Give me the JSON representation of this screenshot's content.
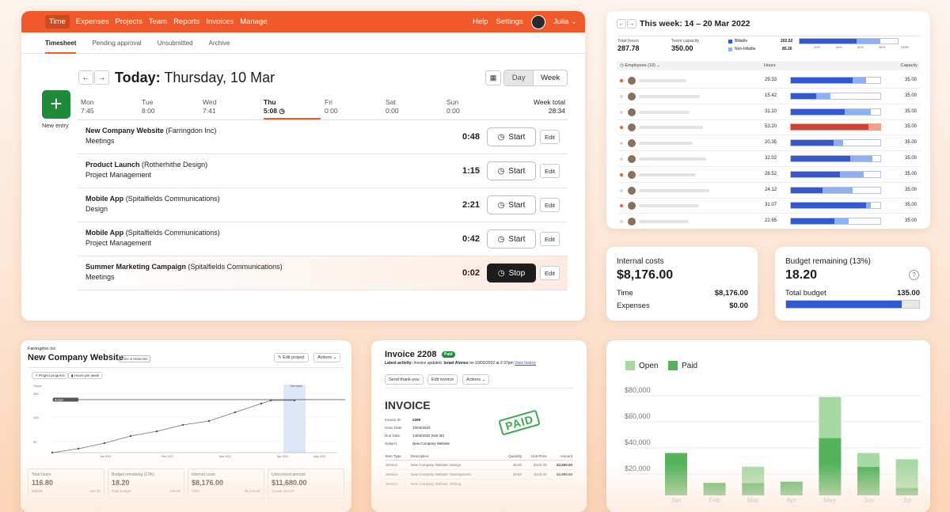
{
  "main": {
    "nav": [
      "Time",
      "Expenses",
      "Projects",
      "Team",
      "Reports",
      "Invoices",
      "Manage"
    ],
    "nav_right": [
      "Help",
      "Settings"
    ],
    "user": "Julia",
    "subtabs": [
      "Timesheet",
      "Pending approval",
      "Unsubmitted",
      "Archive"
    ],
    "today_bold": "Today:",
    "today_date": "Thursday, 10 Mar",
    "view_day": "Day",
    "view_week": "Week",
    "new_entry": "New entry",
    "days": [
      {
        "name": "Mon",
        "time": "7:45"
      },
      {
        "name": "Tue",
        "time": "8:00"
      },
      {
        "name": "Wed",
        "time": "7:41"
      },
      {
        "name": "Thu",
        "time": "5:08"
      },
      {
        "name": "Fri",
        "time": "0:00"
      },
      {
        "name": "Sat",
        "time": "0:00"
      },
      {
        "name": "Sun",
        "time": "0:00"
      }
    ],
    "week_total_label": "Week total",
    "week_total": "28:34",
    "entries": [
      {
        "project": "New Company Website",
        "client": "(Farringdon Inc)",
        "task": "Meetings",
        "duration": "0:48",
        "action": "Start"
      },
      {
        "project": "Product Launch",
        "client": "(Rotherhithe Design)",
        "task": "Project Management",
        "duration": "1:15",
        "action": "Start"
      },
      {
        "project": "Mobile App",
        "client": "(Spitalfields Communications)",
        "task": "Design",
        "duration": "2:21",
        "action": "Start"
      },
      {
        "project": "Mobile App",
        "client": "(Spitalfields Communications)",
        "task": "Project Management",
        "duration": "0:42",
        "action": "Start"
      },
      {
        "project": "Summer Marketing Campaign",
        "client": "(Spitalfields Communications)",
        "task": "Meetings",
        "duration": "0:02",
        "action": "Stop"
      }
    ],
    "edit_label": "Edit"
  },
  "week": {
    "title": "This week: 14 – 20 Mar 2022",
    "total_hours_label": "Total hours",
    "total_hours": "287.78",
    "capacity_label": "Team capacity",
    "capacity": "350.00",
    "billable_label": "Billable",
    "billable": "202.52",
    "nonbillable_label": "Non-billable",
    "nonbillable": "85.26",
    "scale": [
      "20%",
      "40%",
      "60%",
      "80%",
      "100%"
    ],
    "col_employees": "Employees (10)",
    "col_hours": "Hours",
    "col_capacity": "Capacity",
    "employees": [
      {
        "hours": "29.33",
        "capacity": "35.00",
        "billable": 0.69,
        "total": 0.84,
        "over": false,
        "status": "orange"
      },
      {
        "hours": "15.42",
        "capacity": "35.00",
        "billable": 0.28,
        "total": 0.44,
        "over": false,
        "status": "grey"
      },
      {
        "hours": "31.10",
        "capacity": "35.00",
        "billable": 0.6,
        "total": 0.89,
        "over": false,
        "status": "grey"
      },
      {
        "hours": "53.20",
        "capacity": "35.00",
        "billable": 0.87,
        "total": 1.0,
        "over": true,
        "status": "orange"
      },
      {
        "hours": "20.35",
        "capacity": "35.00",
        "billable": 0.48,
        "total": 0.58,
        "over": false,
        "status": "grey"
      },
      {
        "hours": "32.02",
        "capacity": "35.00",
        "billable": 0.66,
        "total": 0.91,
        "over": false,
        "status": "grey"
      },
      {
        "hours": "28.52",
        "capacity": "35.00",
        "billable": 0.55,
        "total": 0.81,
        "over": false,
        "status": "orange"
      },
      {
        "hours": "24.12",
        "capacity": "35.00",
        "billable": 0.35,
        "total": 0.69,
        "over": false,
        "status": "grey"
      },
      {
        "hours": "31.07",
        "capacity": "35.00",
        "billable": 0.84,
        "total": 0.89,
        "over": false,
        "status": "orange"
      },
      {
        "hours": "22.65",
        "capacity": "35.00",
        "billable": 0.49,
        "total": 0.65,
        "over": false,
        "status": "grey"
      }
    ]
  },
  "internal": {
    "label": "Internal costs",
    "value": "$8,176.00",
    "time_label": "Time",
    "time_value": "$8,176.00",
    "expenses_label": "Expenses",
    "expenses_value": "$0.00"
  },
  "budget": {
    "label": "Budget remaining (13%)",
    "value": "18.20",
    "total_label": "Total budget",
    "total_value": "135.00",
    "fill": 0.87
  },
  "project": {
    "client": "Farringdon Inc",
    "name": "New Company Website",
    "badge": "Time & Materials",
    "edit": "Edit project",
    "actions": "Actions",
    "tabs": [
      "Project progress",
      "Hours per week"
    ],
    "ylabels": [
      "Hours",
      "150",
      "100",
      "50"
    ],
    "budget_tag": "Budget",
    "this_week": "This week",
    "xlabels": [
      "Jan 2022",
      "Feb 2022",
      "Mar 2022",
      "Apr 2022",
      "May 2022"
    ],
    "progress": [
      0,
      5,
      12,
      21,
      27,
      35,
      40,
      51,
      62,
      66,
      66
    ],
    "stats": [
      {
        "label": "Total hours",
        "value": "116.80",
        "sub": "Billable",
        "subv": "116.80"
      },
      {
        "label": "Budget remaining (13%)",
        "value": "18.20",
        "sub": "Total budget",
        "subv": "135.00"
      },
      {
        "label": "Internal costs",
        "value": "$8,176.00",
        "sub": "Time",
        "subv": "$8,176.00"
      },
      {
        "label": "Uninvoiced amount",
        "value": "$11,680.00",
        "sub": "Create invoice",
        "subv": ""
      }
    ]
  },
  "invoice": {
    "title": "Invoice 2208",
    "badge": "Paid",
    "activity_label": "Latest activity:",
    "activity": "Invoice updated.",
    "activity_user": "Israel Alonso",
    "activity_when": "on 10/03/2022 at 2:37pm",
    "activity_link": "View history",
    "buttons": [
      "Send thank-you",
      "Edit invoice",
      "Actions"
    ],
    "heading": "INVOICE",
    "stamp": "PAID",
    "meta": [
      {
        "k": "Invoice ID",
        "v": "2208"
      },
      {
        "k": "Issue Date",
        "v": "10/03/2022"
      },
      {
        "k": "Due Date",
        "v": "14/04/2022 (Net 30)"
      },
      {
        "k": "Subject",
        "v": "New Company Website"
      }
    ],
    "cols": [
      "Item Type",
      "Description",
      "Quantity",
      "Unit Price",
      "Amount"
    ],
    "lines": [
      {
        "type": "Service",
        "desc": "New Company Website: Design",
        "qty": "26.00",
        "price": "$100.00",
        "amt": "$2,600.00"
      },
      {
        "type": "Service",
        "desc": "New Company Website: Development",
        "qty": "39.50",
        "price": "$100.00",
        "amt": "$3,950.00"
      },
      {
        "type": "Service",
        "desc": "New Company Website: Writing",
        "qty": "",
        "price": "",
        "amt": ""
      }
    ]
  },
  "chart_data": {
    "type": "bar",
    "title": "",
    "legend": [
      "Open",
      "Paid"
    ],
    "legend_position": "top-left",
    "categories": [
      "Jan",
      "Feb",
      "Mar",
      "Apr",
      "May",
      "Jun",
      "Jul"
    ],
    "series": [
      {
        "name": "Paid",
        "values": [
          34000,
          10000,
          10000,
          11000,
          46000,
          23000,
          6000
        ]
      },
      {
        "name": "Open",
        "values": [
          0,
          0,
          13000,
          0,
          33000,
          11000,
          23000
        ]
      }
    ],
    "yticks": [
      "$80,000",
      "$60,000",
      "$40,000",
      "$20,000"
    ],
    "ylim": [
      0,
      80000
    ],
    "grid": true,
    "colors": {
      "open": "#a8d8a4",
      "paid": "#55b35b"
    }
  }
}
